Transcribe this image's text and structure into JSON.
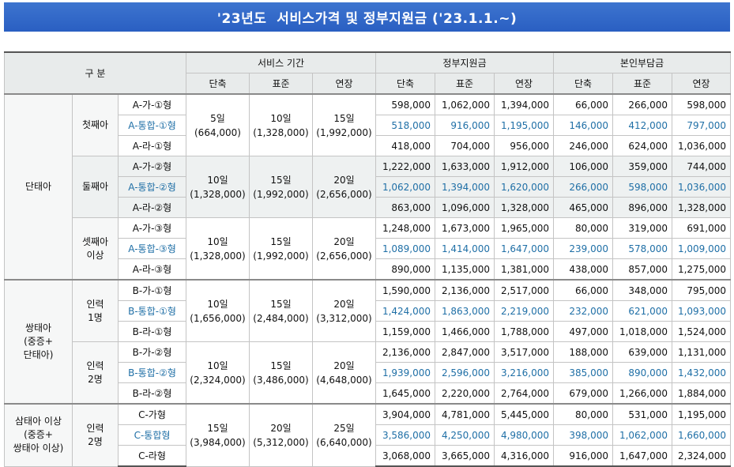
{
  "title": "'23년도  서비스가격 및 정부지원금 ('23.1.1.~)",
  "header": {
    "category": "구 분",
    "service_period": "서비스 기간",
    "gov_support": "정부지원금",
    "self_pay": "본인부담금",
    "sub": [
      "단축",
      "표준",
      "연장"
    ]
  },
  "blocks": [
    {
      "group": "단태아",
      "subgroups": [
        {
          "label": "첫째아",
          "service": [
            "5일\n(664,000)",
            "10일\n(1,328,000)",
            "15일\n(1,992,000)"
          ],
          "rows": [
            {
              "type": "A-가-①형",
              "gov": [
                "598,000",
                "1,062,000",
                "1,394,000"
              ],
              "self": [
                "66,000",
                "266,000",
                "598,000"
              ]
            },
            {
              "type": "A-통합-①형",
              "gov": [
                "518,000",
                "916,000",
                "1,195,000"
              ],
              "self": [
                "146,000",
                "412,000",
                "797,000"
              ]
            },
            {
              "type": "A-라-①형",
              "gov": [
                "418,000",
                "704,000",
                "956,000"
              ],
              "self": [
                "246,000",
                "624,000",
                "1,036,000"
              ]
            }
          ]
        },
        {
          "label": "둘째아",
          "service": [
            "10일\n(1,328,000)",
            "15일\n(1,992,000)",
            "20일\n(2,656,000)"
          ],
          "rows": [
            {
              "type": "A-가-②형",
              "gov": [
                "1,222,000",
                "1,633,000",
                "1,912,000"
              ],
              "self": [
                "106,000",
                "359,000",
                "744,000"
              ]
            },
            {
              "type": "A-통합-②형",
              "gov": [
                "1,062,000",
                "1,394,000",
                "1,620,000"
              ],
              "self": [
                "266,000",
                "598,000",
                "1,036,000"
              ]
            },
            {
              "type": "A-라-②형",
              "gov": [
                "863,000",
                "1,096,000",
                "1,328,000"
              ],
              "self": [
                "465,000",
                "896,000",
                "1,328,000"
              ]
            }
          ]
        },
        {
          "label": "셋째아\n이상",
          "service": [
            "10일\n(1,328,000)",
            "15일\n(1,992,000)",
            "20일\n(2,656,000)"
          ],
          "rows": [
            {
              "type": "A-가-③형",
              "gov": [
                "1,248,000",
                "1,673,000",
                "1,965,000"
              ],
              "self": [
                "80,000",
                "319,000",
                "691,000"
              ]
            },
            {
              "type": "A-통합-③형",
              "gov": [
                "1,089,000",
                "1,414,000",
                "1,647,000"
              ],
              "self": [
                "239,000",
                "578,000",
                "1,009,000"
              ]
            },
            {
              "type": "A-라-③형",
              "gov": [
                "890,000",
                "1,135,000",
                "1,381,000"
              ],
              "self": [
                "438,000",
                "857,000",
                "1,275,000"
              ]
            }
          ]
        }
      ]
    },
    {
      "group": "쌍태아\n(중증+\n단태아)",
      "subgroups": [
        {
          "label": "인력\n1명",
          "service": [
            "10일\n(1,656,000)",
            "15일\n(2,484,000)",
            "20일\n(3,312,000)"
          ],
          "rows": [
            {
              "type": "B-가-①형",
              "gov": [
                "1,590,000",
                "2,136,000",
                "2,517,000"
              ],
              "self": [
                "66,000",
                "348,000",
                "795,000"
              ]
            },
            {
              "type": "B-통합-①형",
              "gov": [
                "1,424,000",
                "1,863,000",
                "2,219,000"
              ],
              "self": [
                "232,000",
                "621,000",
                "1,093,000"
              ]
            },
            {
              "type": "B-라-①형",
              "gov": [
                "1,159,000",
                "1,466,000",
                "1,788,000"
              ],
              "self": [
                "497,000",
                "1,018,000",
                "1,524,000"
              ]
            }
          ]
        },
        {
          "label": "인력\n2명",
          "service": [
            "10일\n(2,324,000)",
            "15일\n(3,486,000)",
            "20일\n(4,648,000)"
          ],
          "rows": [
            {
              "type": "B-가-②형",
              "gov": [
                "2,136,000",
                "2,847,000",
                "3,517,000"
              ],
              "self": [
                "188,000",
                "639,000",
                "1,131,000"
              ]
            },
            {
              "type": "B-통합-②형",
              "gov": [
                "1,939,000",
                "2,596,000",
                "3,216,000"
              ],
              "self": [
                "385,000",
                "890,000",
                "1,432,000"
              ]
            },
            {
              "type": "B-라-②형",
              "gov": [
                "1,645,000",
                "2,220,000",
                "2,764,000"
              ],
              "self": [
                "679,000",
                "1,266,000",
                "1,884,000"
              ]
            }
          ]
        }
      ]
    },
    {
      "group": "삼태아 이상\n(중증+\n쌍태아 이상)",
      "subgroups": [
        {
          "label": "인력\n2명",
          "service": [
            "15일\n(3,984,000)",
            "20일\n(5,312,000)",
            "25일\n(6,640,000)"
          ],
          "rows": [
            {
              "type": "C-가형",
              "gov": [
                "3,904,000",
                "4,781,000",
                "5,445,000"
              ],
              "self": [
                "80,000",
                "531,000",
                "1,195,000"
              ]
            },
            {
              "type": "C-통합형",
              "gov": [
                "3,586,000",
                "4,250,000",
                "4,980,000"
              ],
              "self": [
                "398,000",
                "1,062,000",
                "1,660,000"
              ]
            },
            {
              "type": "C-라형",
              "gov": [
                "3,068,000",
                "3,665,000",
                "4,316,000"
              ],
              "self": [
                "916,000",
                "1,647,000",
                "2,324,000"
              ]
            }
          ]
        }
      ]
    }
  ]
}
